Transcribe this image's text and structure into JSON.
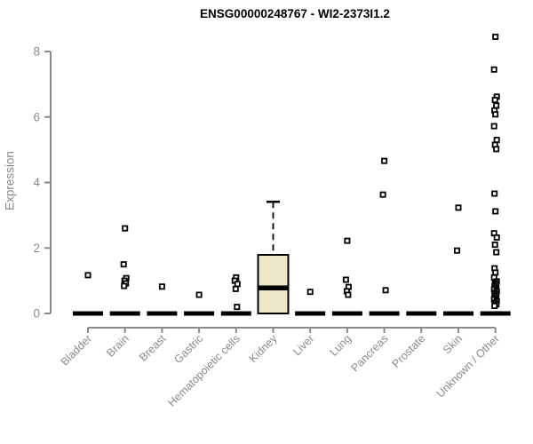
{
  "title": "ENSG00000248767 - WI2-2373I1.2",
  "ylabel": "Expression",
  "chart_data": {
    "type": "boxplot",
    "title": "ENSG00000248767 - WI2-2373I1.2",
    "xlabel": "",
    "ylabel": "Expression",
    "ylim": [
      0,
      8
    ],
    "yticks": [
      0,
      2,
      4,
      6,
      8
    ],
    "grid": false,
    "categories": [
      "Bladder",
      "Brain",
      "Breast",
      "Gastric",
      "Hematopoietic cells",
      "Kidney",
      "Liver",
      "Lung",
      "Pancreas",
      "Prostate",
      "Skin",
      "Unknown / Other"
    ],
    "boxes": [
      {
        "category": "Bladder",
        "q1": 0,
        "median": 0,
        "q3": 0,
        "whisker_low": 0,
        "whisker_high": 0,
        "outliers": [
          1.17
        ]
      },
      {
        "category": "Brain",
        "q1": 0,
        "median": 0,
        "q3": 0,
        "whisker_low": 0,
        "whisker_high": 0,
        "outliers": [
          2.6,
          1.5,
          1.08,
          1.0,
          0.92,
          0.84
        ]
      },
      {
        "category": "Breast",
        "q1": 0,
        "median": 0,
        "q3": 0,
        "whisker_low": 0,
        "whisker_high": 0,
        "outliers": [
          0.82
        ]
      },
      {
        "category": "Gastric",
        "q1": 0,
        "median": 0,
        "q3": 0,
        "whisker_low": 0,
        "whisker_high": 0,
        "outliers": [
          0.57
        ]
      },
      {
        "category": "Hematopoietic cells",
        "q1": 0,
        "median": 0,
        "q3": 0,
        "whisker_low": 0,
        "whisker_high": 0,
        "outliers": [
          1.1,
          1.0,
          0.9,
          0.75,
          0.2
        ]
      },
      {
        "category": "Kidney",
        "q1": 0,
        "median": 0.78,
        "q3": 1.79,
        "whisker_low": 0,
        "whisker_high": 3.41,
        "outliers": []
      },
      {
        "category": "Liver",
        "q1": 0,
        "median": 0,
        "q3": 0,
        "whisker_low": 0,
        "whisker_high": 0,
        "outliers": [
          0.66
        ]
      },
      {
        "category": "Lung",
        "q1": 0,
        "median": 0,
        "q3": 0,
        "whisker_low": 0,
        "whisker_high": 0,
        "outliers": [
          2.22,
          1.03,
          0.81,
          0.68,
          0.57
        ]
      },
      {
        "category": "Pancreas",
        "q1": 0,
        "median": 0,
        "q3": 0,
        "whisker_low": 0,
        "whisker_high": 0,
        "outliers": [
          4.66,
          3.63,
          0.71
        ]
      },
      {
        "category": "Prostate",
        "q1": 0,
        "median": 0,
        "q3": 0,
        "whisker_low": 0,
        "whisker_high": 0,
        "outliers": []
      },
      {
        "category": "Skin",
        "q1": 0,
        "median": 0,
        "q3": 0,
        "whisker_low": 0,
        "whisker_high": 0,
        "outliers": [
          3.23,
          1.92
        ]
      },
      {
        "category": "Unknown / Other",
        "q1": 0,
        "median": 0,
        "q3": 0,
        "whisker_low": 0,
        "whisker_high": 0,
        "outliers": [
          8.45,
          7.45,
          6.62,
          6.52,
          6.35,
          6.2,
          6.08,
          5.72,
          5.3,
          5.15,
          5.02,
          3.66,
          3.12,
          2.45,
          2.32,
          2.1,
          1.87,
          1.38,
          1.25,
          1.1,
          0.98,
          0.93,
          0.88,
          0.83,
          0.78,
          0.73,
          0.68,
          0.63,
          0.58,
          0.53,
          0.48,
          0.43,
          0.38,
          0.33,
          0.28,
          0.23
        ]
      }
    ],
    "colors": {
      "box_fill": "#ede7ca",
      "box_stroke": "#000000",
      "median": "#000000",
      "outlier_stroke": "#000000",
      "outlier_fill": "#ffffff",
      "axis": "#8a8a8a",
      "title": "#000000",
      "background": "#ffffff"
    },
    "legend": null
  }
}
